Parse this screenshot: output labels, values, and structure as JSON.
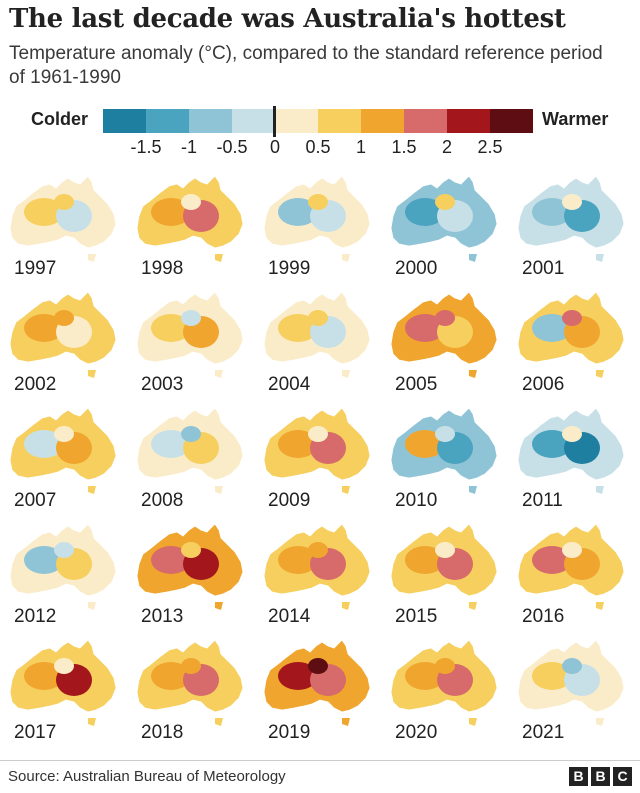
{
  "title": "The last decade was Australia's hottest",
  "subtitle": "Temperature anomaly (°C), compared to the standard reference period of 1961-1990",
  "legend": {
    "colder_label": "Colder",
    "warmer_label": "Warmer",
    "ticks": [
      "-1.5",
      "-1",
      "-0.5",
      "0",
      "0.5",
      "1",
      "1.5",
      "2",
      "2.5"
    ],
    "colors": [
      "#1f7fa0",
      "#4aa3bf",
      "#8fc4d6",
      "#c7e0e8",
      "#fbecc9",
      "#f6cf5e",
      "#f0a52e",
      "#d76a6a",
      "#a3161b",
      "#5e0e12"
    ]
  },
  "map_data": [
    {
      "year": "1997",
      "base": "#fbecc9",
      "patches": [
        "#f6cf5e",
        "#c7e0e8",
        "#f6cf5e"
      ]
    },
    {
      "year": "1998",
      "base": "#f6cf5e",
      "patches": [
        "#f0a52e",
        "#d76a6a",
        "#fbecc9"
      ]
    },
    {
      "year": "1999",
      "base": "#fbecc9",
      "patches": [
        "#8fc4d6",
        "#c7e0e8",
        "#f6cf5e"
      ]
    },
    {
      "year": "2000",
      "base": "#8fc4d6",
      "patches": [
        "#4aa3bf",
        "#c7e0e8",
        "#f6cf5e"
      ]
    },
    {
      "year": "2001",
      "base": "#c7e0e8",
      "patches": [
        "#8fc4d6",
        "#4aa3bf",
        "#fbecc9"
      ]
    },
    {
      "year": "2002",
      "base": "#f6cf5e",
      "patches": [
        "#f0a52e",
        "#fbecc9",
        "#f0a52e"
      ]
    },
    {
      "year": "2003",
      "base": "#fbecc9",
      "patches": [
        "#f6cf5e",
        "#f0a52e",
        "#c7e0e8"
      ]
    },
    {
      "year": "2004",
      "base": "#fbecc9",
      "patches": [
        "#f6cf5e",
        "#c7e0e8",
        "#f6cf5e"
      ]
    },
    {
      "year": "2005",
      "base": "#f0a52e",
      "patches": [
        "#d76a6a",
        "#f6cf5e",
        "#d76a6a"
      ]
    },
    {
      "year": "2006",
      "base": "#f6cf5e",
      "patches": [
        "#8fc4d6",
        "#f0a52e",
        "#d76a6a"
      ]
    },
    {
      "year": "2007",
      "base": "#f6cf5e",
      "patches": [
        "#c7e0e8",
        "#f0a52e",
        "#fbecc9"
      ]
    },
    {
      "year": "2008",
      "base": "#fbecc9",
      "patches": [
        "#c7e0e8",
        "#f6cf5e",
        "#8fc4d6"
      ]
    },
    {
      "year": "2009",
      "base": "#f6cf5e",
      "patches": [
        "#f0a52e",
        "#d76a6a",
        "#fbecc9"
      ]
    },
    {
      "year": "2010",
      "base": "#8fc4d6",
      "patches": [
        "#f0a52e",
        "#4aa3bf",
        "#c7e0e8"
      ]
    },
    {
      "year": "2011",
      "base": "#c7e0e8",
      "patches": [
        "#4aa3bf",
        "#1f7fa0",
        "#fbecc9"
      ]
    },
    {
      "year": "2012",
      "base": "#fbecc9",
      "patches": [
        "#8fc4d6",
        "#f6cf5e",
        "#c7e0e8"
      ]
    },
    {
      "year": "2013",
      "base": "#f0a52e",
      "patches": [
        "#d76a6a",
        "#a3161b",
        "#f6cf5e"
      ]
    },
    {
      "year": "2014",
      "base": "#f6cf5e",
      "patches": [
        "#f0a52e",
        "#d76a6a",
        "#f0a52e"
      ]
    },
    {
      "year": "2015",
      "base": "#f6cf5e",
      "patches": [
        "#f0a52e",
        "#d76a6a",
        "#fbecc9"
      ]
    },
    {
      "year": "2016",
      "base": "#f6cf5e",
      "patches": [
        "#d76a6a",
        "#f0a52e",
        "#fbecc9"
      ]
    },
    {
      "year": "2017",
      "base": "#f6cf5e",
      "patches": [
        "#f0a52e",
        "#a3161b",
        "#fbecc9"
      ]
    },
    {
      "year": "2018",
      "base": "#f6cf5e",
      "patches": [
        "#f0a52e",
        "#d76a6a",
        "#f0a52e"
      ]
    },
    {
      "year": "2019",
      "base": "#f0a52e",
      "patches": [
        "#a3161b",
        "#d76a6a",
        "#5e0e12"
      ]
    },
    {
      "year": "2020",
      "base": "#f6cf5e",
      "patches": [
        "#f0a52e",
        "#d76a6a",
        "#f0a52e"
      ]
    },
    {
      "year": "2021",
      "base": "#fbecc9",
      "patches": [
        "#f6cf5e",
        "#c7e0e8",
        "#8fc4d6"
      ]
    }
  ],
  "footer": {
    "source": "Source: Australian Bureau of Meteorology",
    "logo_letters": [
      "B",
      "B",
      "C"
    ]
  }
}
